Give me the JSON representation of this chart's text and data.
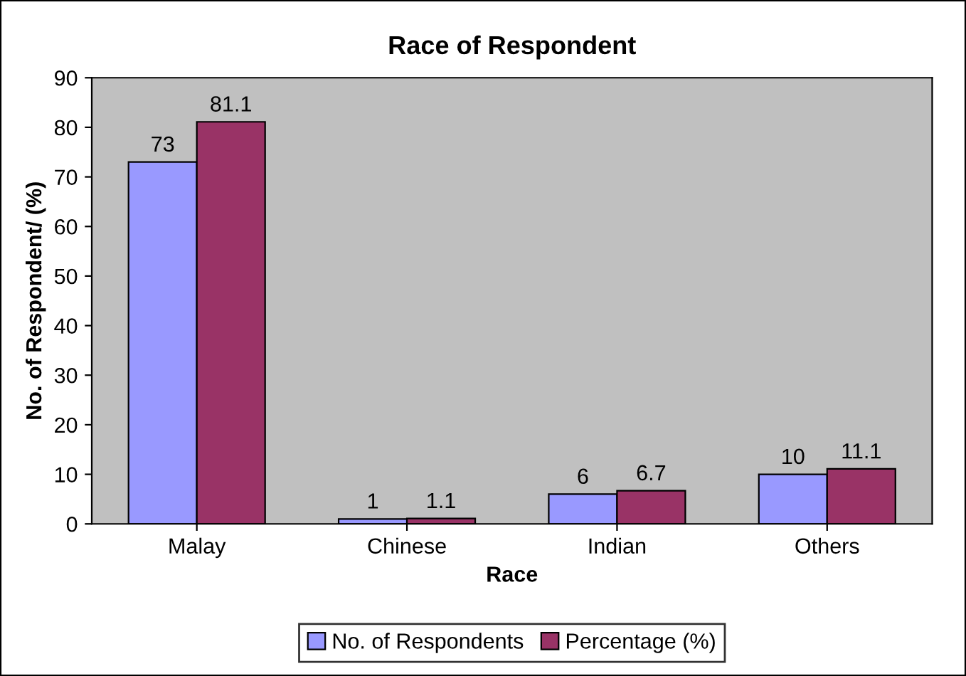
{
  "chart_data": {
    "type": "bar",
    "title": "Race of Respondent",
    "xlabel": "Race",
    "ylabel": "No. of Respondent/ (%)",
    "categories": [
      "Malay",
      "Chinese",
      "Indian",
      "Others"
    ],
    "series": [
      {
        "name": "No. of Respondents",
        "color": "#9999ff",
        "values": [
          73,
          1,
          6,
          10
        ]
      },
      {
        "name": "Percentage (%)",
        "color": "#993366",
        "values": [
          81.1,
          1.1,
          6.7,
          11.1
        ]
      }
    ],
    "ylim": [
      0,
      90
    ],
    "yticks": [
      0,
      10,
      20,
      30,
      40,
      50,
      60,
      70,
      80,
      90
    ],
    "grid": false,
    "legend": "bottom",
    "data_labels": true
  }
}
